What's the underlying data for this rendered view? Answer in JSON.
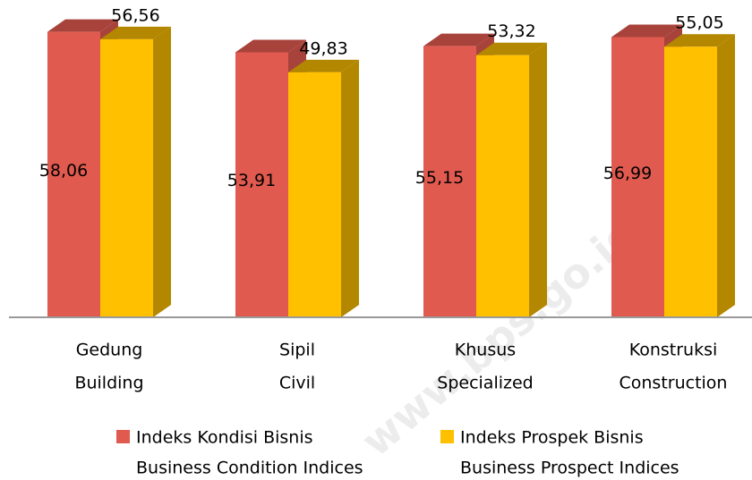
{
  "chart_data": {
    "type": "bar3d",
    "categories": [
      [
        "Gedung",
        "Building"
      ],
      [
        "Sipil",
        "Civil"
      ],
      [
        "Khusus",
        "Specialized"
      ],
      [
        "Konstruksi",
        "Construction"
      ]
    ],
    "series": [
      {
        "name": [
          "Indeks Kondisi Bisnis",
          "Business Condition Indices"
        ],
        "color": "#e05a4f",
        "side_color": "#a8433b",
        "values": [
          58.06,
          53.91,
          55.15,
          56.99
        ],
        "value_labels": [
          "58,06",
          "53,91",
          "55,15",
          "56,99"
        ]
      },
      {
        "name": [
          "Indeks Prospek Bisnis",
          "Business Prospect Indices"
        ],
        "color": "#ffc000",
        "side_color": "#b38700",
        "values": [
          56.56,
          49.83,
          53.32,
          55.05
        ],
        "value_labels": [
          "56,56",
          "49,83",
          "53,32",
          "55,05"
        ]
      }
    ],
    "ylim": [
      0,
      60
    ],
    "watermark": "www.bps.go.id"
  }
}
